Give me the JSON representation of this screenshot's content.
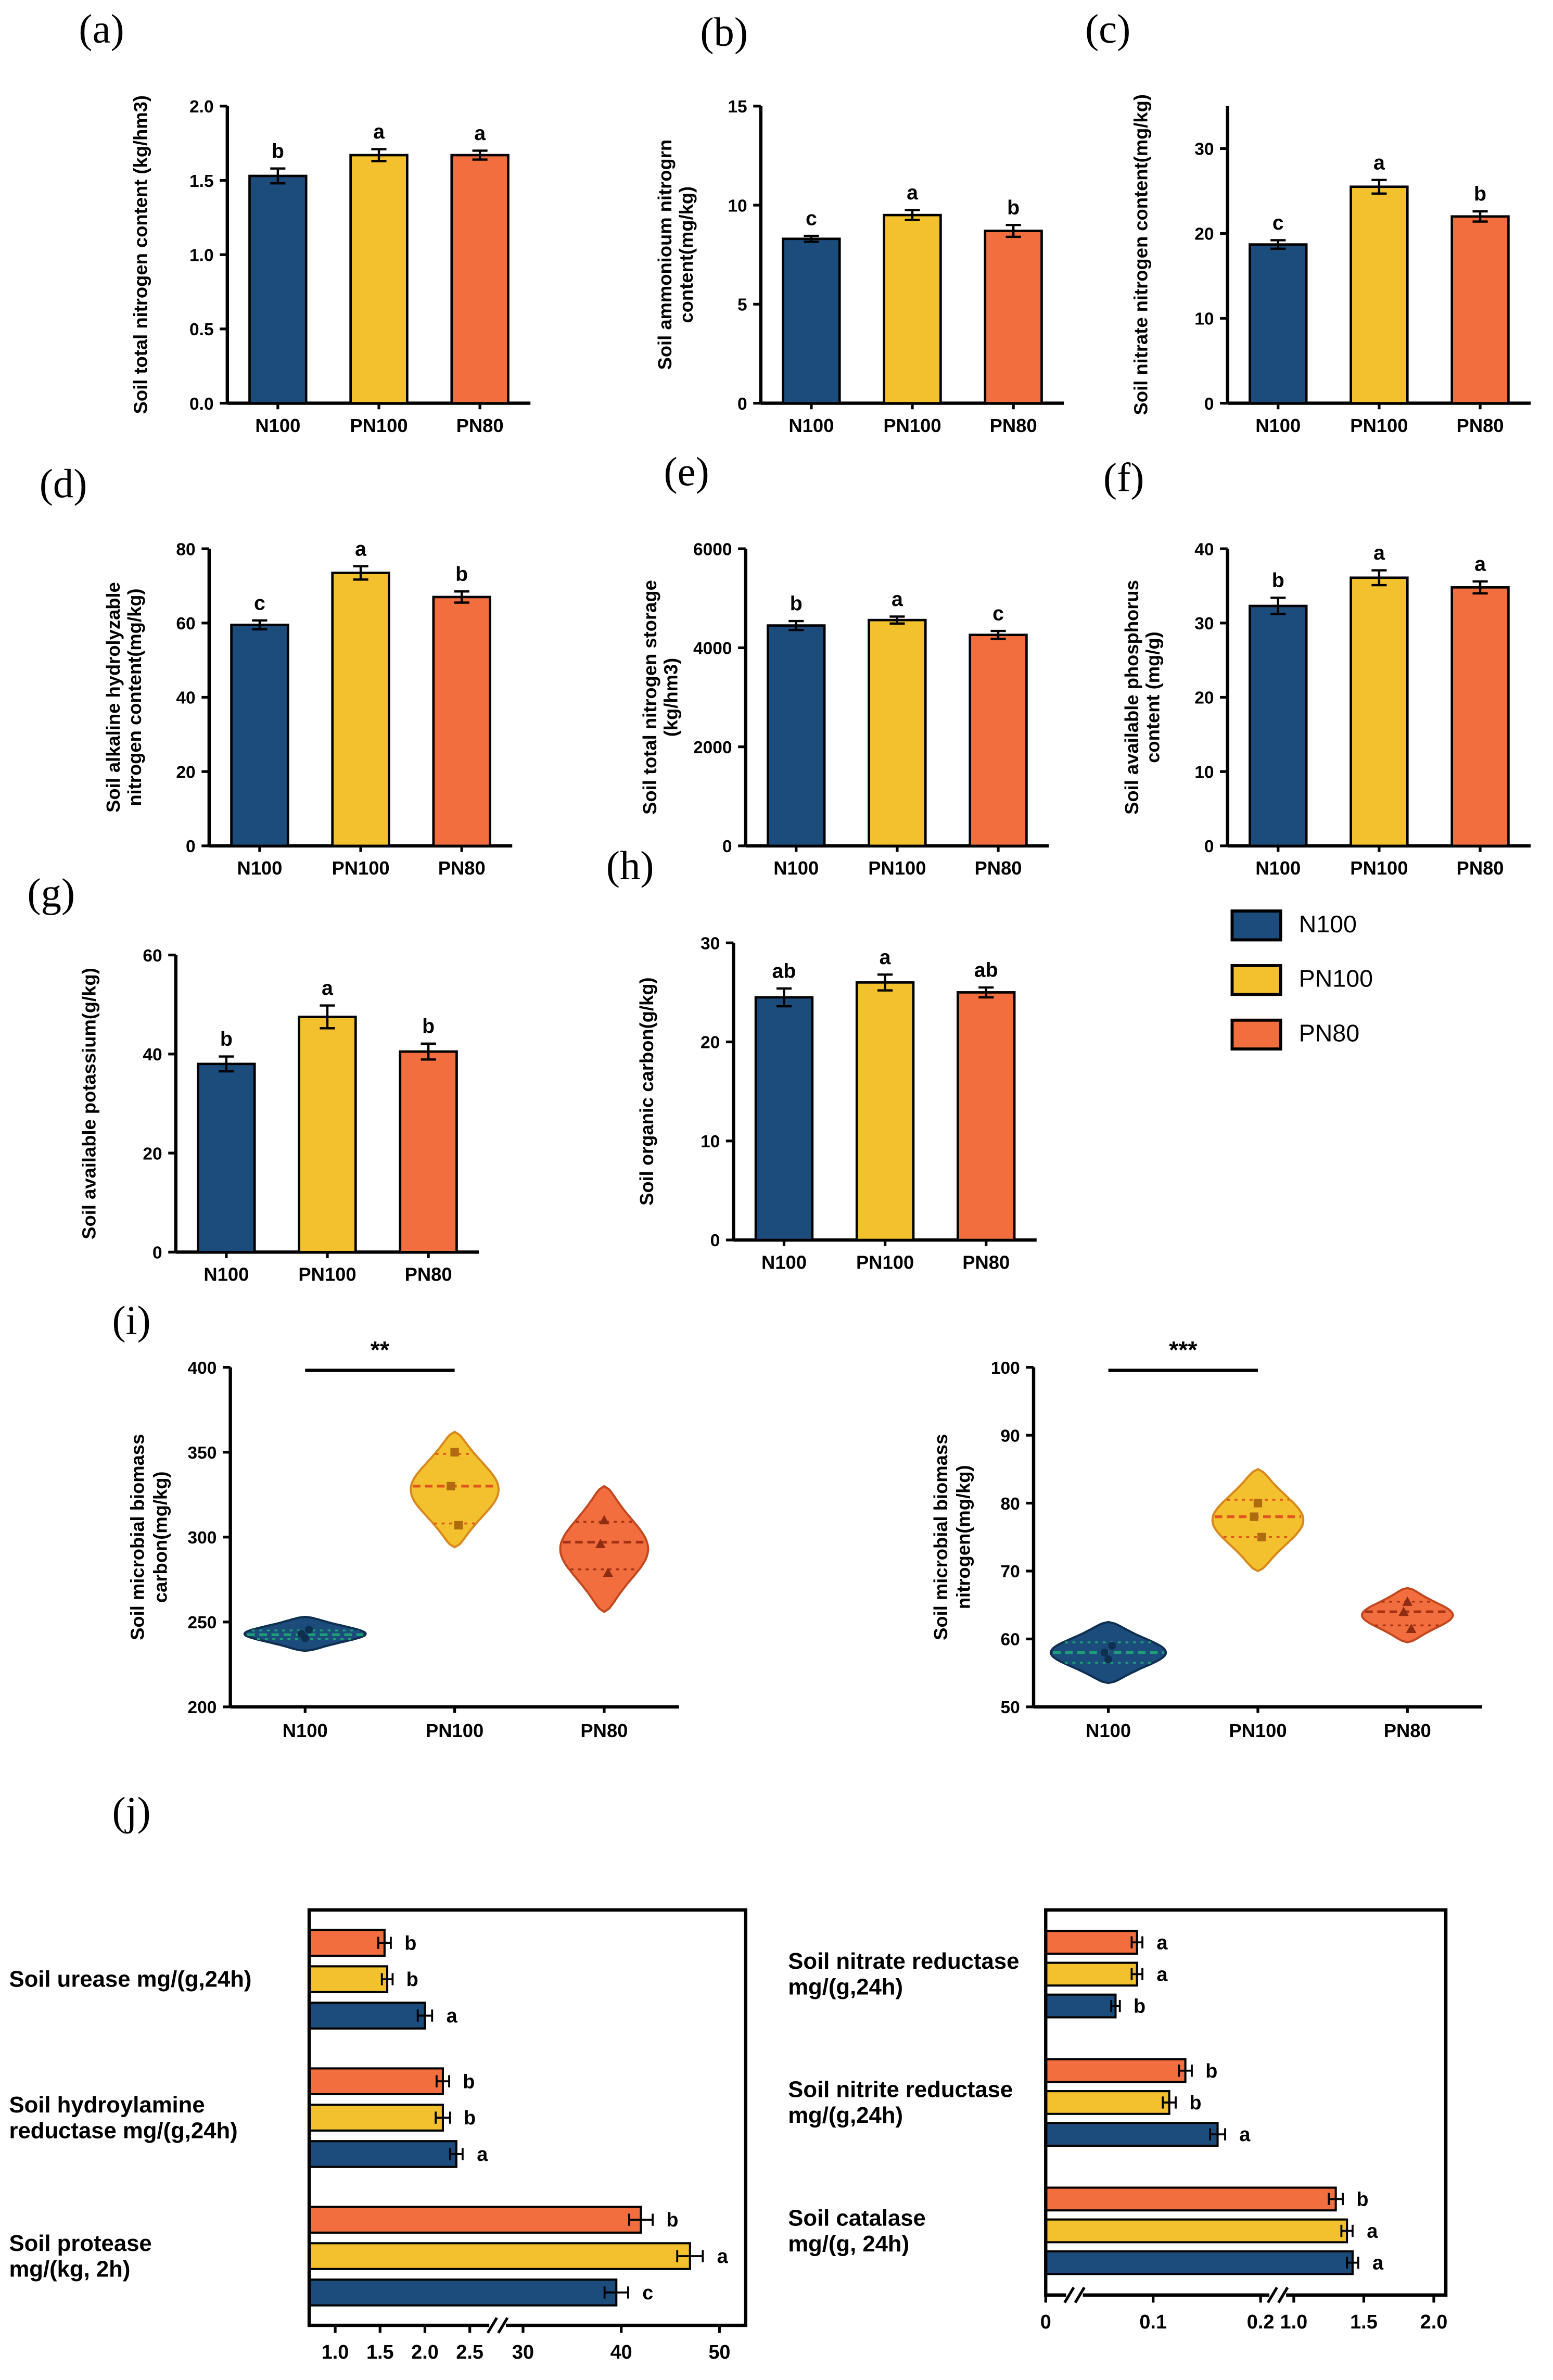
{
  "colors": {
    "N100": "#1b4c7c",
    "PN100": "#f2c12d",
    "PN80": "#f26e3f"
  },
  "violin_strokes": {
    "N100": "#0e2f50",
    "PN100": "#d8881c",
    "PN80": "#c2491f"
  },
  "line_colors": {
    "N100": "#1e9e77",
    "PN100": "#e0541f",
    "PN80": "#a43214"
  },
  "marker_colors": {
    "N100": "#0e2f50",
    "PN100": "#b06a10",
    "PN80": "#8f2c12"
  },
  "panel_letters": {
    "a": "(a)",
    "b": "(b)",
    "c": "(c)",
    "d": "(d)",
    "e": "(e)",
    "f": "(f)",
    "g": "(g)",
    "h": "(h)",
    "i": "(i)",
    "j": "(j)"
  },
  "legend": {
    "items": [
      {
        "label": "N100"
      },
      {
        "label": "PN100"
      },
      {
        "label": "PN80"
      }
    ]
  },
  "chart_data": [
    {
      "id": "a",
      "type": "bar",
      "ylabel": [
        "Soil total nitrogen content (kg/hm3)"
      ],
      "ylim": [
        0,
        2
      ],
      "yticks": [
        0,
        0.5,
        1,
        1.5,
        2
      ],
      "ytick_labels": [
        "0.0",
        "0.5",
        "1.0",
        "1.5",
        "2.0"
      ],
      "categories": [
        "N100",
        "PN100",
        "PN80"
      ],
      "values": [
        1.53,
        1.67,
        1.67
      ],
      "errors": [
        0.05,
        0.04,
        0.03
      ],
      "letters": [
        "b",
        "a",
        "a"
      ]
    },
    {
      "id": "b",
      "type": "bar",
      "ylabel": [
        "Soil ammonioum nitrogrn",
        "content(mg/kg)"
      ],
      "ylim": [
        0,
        15
      ],
      "yticks": [
        0,
        5,
        10,
        15
      ],
      "ytick_labels": [
        "0",
        "5",
        "10",
        "15"
      ],
      "categories": [
        "N100",
        "PN100",
        "PN80"
      ],
      "values": [
        8.3,
        9.5,
        8.7
      ],
      "errors": [
        0.15,
        0.25,
        0.3
      ],
      "letters": [
        "c",
        "a",
        "b"
      ]
    },
    {
      "id": "c",
      "type": "bar",
      "ylabel": [
        "Soil nitrate nitrogen content(mg/kg)"
      ],
      "ylim": [
        0,
        35
      ],
      "yticks": [
        0,
        10,
        20,
        30
      ],
      "ytick_labels": [
        "0",
        "10",
        "20",
        "30"
      ],
      "categories": [
        "N100",
        "PN100",
        "PN80"
      ],
      "values": [
        18.7,
        25.5,
        22.0
      ],
      "errors": [
        0.5,
        0.8,
        0.6
      ],
      "letters": [
        "c",
        "a",
        "b"
      ]
    },
    {
      "id": "d",
      "type": "bar",
      "ylabel": [
        "Soil alkaline hydrolyzable",
        "nitrogen content(mg/kg)"
      ],
      "ylim": [
        0,
        80
      ],
      "yticks": [
        0,
        20,
        40,
        60,
        80
      ],
      "ytick_labels": [
        "0",
        "20",
        "40",
        "60",
        "80"
      ],
      "categories": [
        "N100",
        "PN100",
        "PN80"
      ],
      "values": [
        59.5,
        73.5,
        67.0
      ],
      "errors": [
        1.2,
        1.8,
        1.5
      ],
      "letters": [
        "c",
        "a",
        "b"
      ]
    },
    {
      "id": "e",
      "type": "bar",
      "ylabel": [
        "Soil total nitrogen storage",
        "(kg/hm3)"
      ],
      "ylim": [
        0,
        6000
      ],
      "yticks": [
        0,
        2000,
        4000,
        6000
      ],
      "ytick_labels": [
        "0",
        "2000",
        "4000",
        "6000"
      ],
      "categories": [
        "N100",
        "PN100",
        "PN80"
      ],
      "values": [
        4450,
        4560,
        4260
      ],
      "errors": [
        90,
        70,
        80
      ],
      "letters": [
        "b",
        "a",
        "c"
      ]
    },
    {
      "id": "f",
      "type": "bar",
      "ylabel": [
        "Soil available phosphorus",
        "content (mg/g)"
      ],
      "ylim": [
        0,
        40
      ],
      "yticks": [
        0,
        10,
        20,
        30,
        40
      ],
      "ytick_labels": [
        "0",
        "10",
        "20",
        "30",
        "40"
      ],
      "categories": [
        "N100",
        "PN100",
        "PN80"
      ],
      "values": [
        32.3,
        36.1,
        34.8
      ],
      "errors": [
        1.1,
        1.0,
        0.8
      ],
      "letters": [
        "b",
        "a",
        "a"
      ]
    },
    {
      "id": "g",
      "type": "bar",
      "ylabel": [
        "Soil available potassium(g/kg)"
      ],
      "ylim": [
        0,
        60
      ],
      "yticks": [
        0,
        20,
        40,
        60
      ],
      "ytick_labels": [
        "0",
        "20",
        "40",
        "60"
      ],
      "categories": [
        "N100",
        "PN100",
        "PN80"
      ],
      "values": [
        38.0,
        47.5,
        40.5
      ],
      "errors": [
        1.5,
        2.3,
        1.6
      ],
      "letters": [
        "b",
        "a",
        "b"
      ]
    },
    {
      "id": "h",
      "type": "bar",
      "ylabel": [
        "Soil organic carbon(g/kg)"
      ],
      "ylim": [
        0,
        30
      ],
      "yticks": [
        0,
        10,
        20,
        30
      ],
      "ytick_labels": [
        "0",
        "10",
        "20",
        "30"
      ],
      "categories": [
        "N100",
        "PN100",
        "PN80"
      ],
      "values": [
        24.5,
        26.0,
        25.0
      ],
      "errors": [
        0.9,
        0.8,
        0.5
      ],
      "letters": [
        "ab",
        "a",
        "ab"
      ]
    },
    {
      "id": "i1",
      "type": "violin",
      "ylabel": [
        "Soil microbial biomass",
        "carbon(mg/kg)"
      ],
      "ylim": [
        200,
        400
      ],
      "yticks": [
        200,
        250,
        300,
        350,
        400
      ],
      "ytick_labels": [
        "200",
        "250",
        "300",
        "350",
        "400"
      ],
      "sig": {
        "x1": 0,
        "x2": 1,
        "label": "**"
      },
      "violins": [
        {
          "category": "N100",
          "center": 243,
          "half": 10,
          "maxw": 40,
          "median": 242.5,
          "q1": 240,
          "q3": 245,
          "points": [
            240.5,
            243,
            245.5
          ]
        },
        {
          "category": "PN100",
          "center": 328,
          "half": 34,
          "maxw": 29,
          "median": 330,
          "q1": 308,
          "q3": 349,
          "points": [
            350,
            330,
            307
          ]
        },
        {
          "category": "PN80",
          "center": 293,
          "half": 37,
          "maxw": 29,
          "median": 297,
          "q1": 281,
          "q3": 309,
          "points": [
            310,
            296,
            279
          ]
        }
      ]
    },
    {
      "id": "i2",
      "type": "violin",
      "ylabel": [
        "Soil microbial biomass",
        "nitrogen(mg/kg)"
      ],
      "ylim": [
        50,
        100
      ],
      "yticks": [
        50,
        60,
        70,
        80,
        90,
        100
      ],
      "ytick_labels": [
        "50",
        "60",
        "70",
        "80",
        "90",
        "100"
      ],
      "sig": {
        "x1": 0,
        "x2": 1,
        "label": "***"
      },
      "violins": [
        {
          "category": "N100",
          "center": 58,
          "half": 4.5,
          "maxw": 38,
          "median": 58,
          "q1": 56.5,
          "q3": 59.5,
          "points": [
            57,
            58,
            59
          ]
        },
        {
          "category": "PN100",
          "center": 77.5,
          "half": 7.5,
          "maxw": 30,
          "median": 78,
          "q1": 75,
          "q3": 80.5,
          "points": [
            80,
            78,
            75
          ]
        },
        {
          "category": "PN80",
          "center": 63.5,
          "half": 4,
          "maxw": 30,
          "median": 64,
          "q1": 62,
          "q3": 65.5,
          "points": [
            65.5,
            64,
            61.5
          ]
        }
      ]
    },
    {
      "id": "j1",
      "type": "hbar",
      "segments": [
        {
          "v0": 0.71,
          "v1": 2.5,
          "f0": 0,
          "f1": 0.368
        },
        {
          "v0": 30,
          "v1": 50,
          "f0": 0.49,
          "f1": 0.94
        }
      ],
      "breaks": [
        0.43
      ],
      "ticks": [
        {
          "v": 1.0,
          "label": "1.0"
        },
        {
          "v": 1.5,
          "label": "1.5"
        },
        {
          "v": 2.0,
          "label": "2.0"
        },
        {
          "v": 2.5,
          "label": "2.5"
        },
        {
          "v": 30,
          "label": "30"
        },
        {
          "v": 40,
          "label": "40"
        },
        {
          "v": 50,
          "label": "50"
        }
      ],
      "rows": [
        {
          "label": [
            "Soil urease mg/(g,24h)"
          ],
          "bars": [
            {
              "series": "PN80",
              "value": 1.55,
              "error": 0.07,
              "letter": "b"
            },
            {
              "series": "PN100",
              "value": 1.58,
              "error": 0.06,
              "letter": "b"
            },
            {
              "series": "N100",
              "value": 2.0,
              "error": 0.08,
              "letter": "a"
            }
          ]
        },
        {
          "label": [
            "Soil hydroylamine",
            "reductase mg/(g,24h)"
          ],
          "bars": [
            {
              "series": "PN80",
              "value": 2.2,
              "error": 0.07,
              "letter": "b"
            },
            {
              "series": "PN100",
              "value": 2.2,
              "error": 0.08,
              "letter": "b"
            },
            {
              "series": "N100",
              "value": 2.35,
              "error": 0.07,
              "letter": "a"
            }
          ]
        },
        {
          "label": [
            "Soil protease",
            "mg/(kg, 2h)"
          ],
          "bars": [
            {
              "series": "PN80",
              "value": 42,
              "error": 1.2,
              "letter": "b"
            },
            {
              "series": "PN100",
              "value": 47,
              "error": 1.3,
              "letter": "a"
            },
            {
              "series": "N100",
              "value": 39.5,
              "error": 1.2,
              "letter": "c"
            }
          ]
        }
      ]
    },
    {
      "id": "j2",
      "type": "hbar",
      "segments": [
        {
          "v0": 0,
          "v1": 0.2,
          "f0": 0,
          "f1": 0.537
        },
        {
          "v0": 1.0,
          "v1": 2.0,
          "f0": 0.62,
          "f1": 0.97
        }
      ],
      "breaks": [
        0.07,
        0.578
      ],
      "ticks": [
        {
          "v": 0,
          "label": "0"
        },
        {
          "v": 0.1,
          "label": "0.1"
        },
        {
          "v": 0.2,
          "label": "0.2"
        },
        {
          "v": 1.0,
          "label": "1.0"
        },
        {
          "v": 1.5,
          "label": "1.5"
        },
        {
          "v": 2.0,
          "label": "2.0"
        }
      ],
      "rows": [
        {
          "label": [
            "Soil nitrate reductase",
            "mg/(g,24h)"
          ],
          "bars": [
            {
              "series": "PN80",
              "value": 0.085,
              "error": 0.005,
              "letter": "a"
            },
            {
              "series": "PN100",
              "value": 0.085,
              "error": 0.005,
              "letter": "a"
            },
            {
              "series": "N100",
              "value": 0.065,
              "error": 0.004,
              "letter": "b"
            }
          ]
        },
        {
          "label": [
            "Soil nitrite reductase",
            "mg/(g,24h)"
          ],
          "bars": [
            {
              "series": "PN80",
              "value": 0.13,
              "error": 0.006,
              "letter": "b"
            },
            {
              "series": "PN100",
              "value": 0.115,
              "error": 0.006,
              "letter": "b"
            },
            {
              "series": "N100",
              "value": 0.16,
              "error": 0.007,
              "letter": "a"
            }
          ]
        },
        {
          "label": [
            "Soil catalase",
            "mg/(g, 24h)"
          ],
          "bars": [
            {
              "series": "PN80",
              "value": 1.3,
              "error": 0.05,
              "letter": "b"
            },
            {
              "series": "PN100",
              "value": 1.38,
              "error": 0.04,
              "letter": "a"
            },
            {
              "series": "N100",
              "value": 1.42,
              "error": 0.04,
              "letter": "a"
            }
          ]
        }
      ]
    }
  ]
}
